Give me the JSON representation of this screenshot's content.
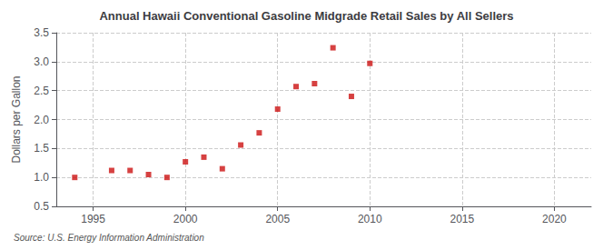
{
  "chart_data": {
    "type": "scatter",
    "title": "Annual Hawaii Conventional Gasoline Midgrade Retail Sales by All Sellers",
    "ylabel": "Dollars per Gallon",
    "annotation": "Source: U.S. Energy Information Administration",
    "x": [
      1994,
      1996,
      1997,
      1998,
      1999,
      2000,
      2001,
      2002,
      2003,
      2004,
      2005,
      2006,
      2007,
      2008,
      2009,
      2010
    ],
    "values": [
      1.0,
      1.12,
      1.12,
      1.05,
      1.0,
      1.27,
      1.35,
      1.15,
      1.56,
      1.77,
      2.18,
      2.57,
      2.62,
      3.24,
      2.4,
      2.97
    ],
    "color": "#cc1111",
    "marker": "square",
    "xlim": [
      1993,
      2022
    ],
    "ylim": [
      0.5,
      3.5
    ],
    "xticks": [
      1995,
      2000,
      2005,
      2010,
      2015,
      2020
    ],
    "yticks": [
      0.5,
      {
        "value": 1.0,
        "label": "1.0"
      },
      1.5,
      {
        "value": 2.0,
        "label": "2.0"
      },
      2.5,
      {
        "value": 3.0,
        "label": "3.0"
      },
      3.5
    ],
    "grid": true
  }
}
